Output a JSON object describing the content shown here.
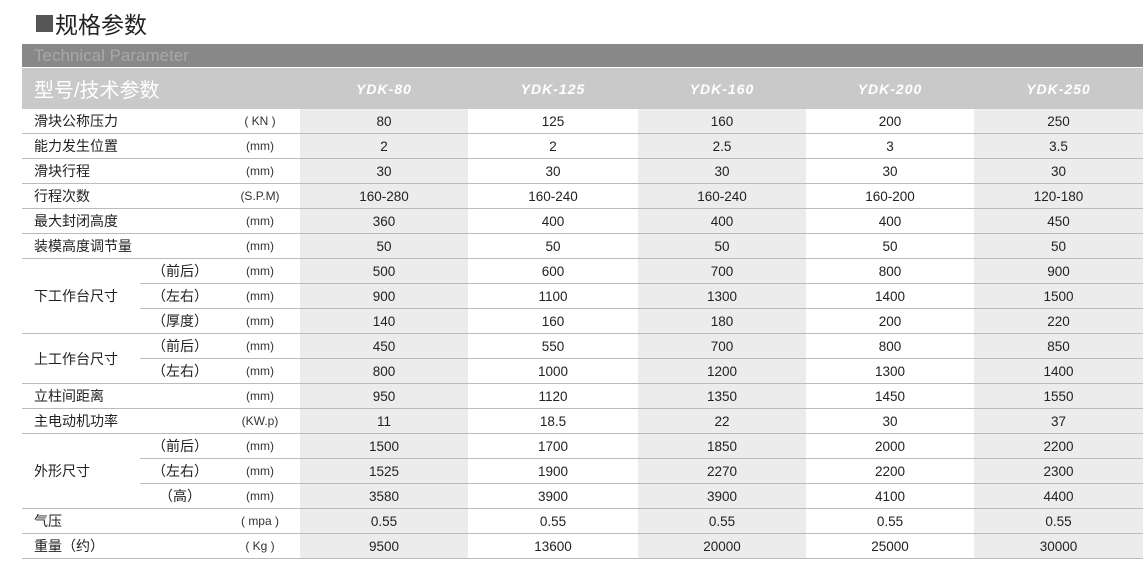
{
  "title": "规格参数",
  "subtitle": "Technical Parameter",
  "header": {
    "label": "型号/技术参数",
    "models": [
      "YDK-80",
      "YDK-125",
      "YDK-160",
      "YDK-200",
      "YDK-250"
    ]
  },
  "rows": [
    {
      "group": "滑块公称压力",
      "sub": "",
      "unit": "( KN )",
      "values": [
        "80",
        "125",
        "160",
        "200",
        "250"
      ]
    },
    {
      "group": "能力发生位置",
      "sub": "",
      "unit": "(mm)",
      "values": [
        "2",
        "2",
        "2.5",
        "3",
        "3.5"
      ]
    },
    {
      "group": "滑块行程",
      "sub": "",
      "unit": "(mm)",
      "values": [
        "30",
        "30",
        "30",
        "30",
        "30"
      ]
    },
    {
      "group": "行程次数",
      "sub": "",
      "unit": "(S.P.M)",
      "values": [
        "160-280",
        "160-240",
        "160-240",
        "160-200",
        "120-180"
      ]
    },
    {
      "group": "最大封闭高度",
      "sub": "",
      "unit": "(mm)",
      "values": [
        "360",
        "400",
        "400",
        "400",
        "450"
      ]
    },
    {
      "group": "装模高度调节量",
      "sub": "",
      "unit": "(mm)",
      "values": [
        "50",
        "50",
        "50",
        "50",
        "50"
      ]
    },
    {
      "group": "下工作台尺寸",
      "span": 3,
      "sub": "（前后）",
      "unit": "(mm)",
      "values": [
        "500",
        "600",
        "700",
        "800",
        "900"
      ]
    },
    {
      "sub": "（左右）",
      "unit": "(mm)",
      "values": [
        "900",
        "1100",
        "1300",
        "1400",
        "1500"
      ]
    },
    {
      "sub": "（厚度）",
      "unit": "(mm)",
      "values": [
        "140",
        "160",
        "180",
        "200",
        "220"
      ]
    },
    {
      "group": "上工作台尺寸",
      "span": 2,
      "sub": "（前后）",
      "unit": "(mm)",
      "values": [
        "450",
        "550",
        "700",
        "800",
        "850"
      ]
    },
    {
      "sub": "（左右）",
      "unit": "(mm)",
      "values": [
        "800",
        "1000",
        "1200",
        "1300",
        "1400"
      ]
    },
    {
      "group": "立柱间距离",
      "sub": "",
      "unit": "(mm)",
      "values": [
        "950",
        "1120",
        "1350",
        "1450",
        "1550"
      ]
    },
    {
      "group": "主电动机功率",
      "sub": "",
      "unit": "(KW.p)",
      "values": [
        "11",
        "18.5",
        "22",
        "30",
        "37"
      ]
    },
    {
      "group": "外形尺寸",
      "span": 3,
      "sub": "（前后）",
      "unit": "(mm)",
      "values": [
        "1500",
        "1700",
        "1850",
        "2000",
        "2200"
      ]
    },
    {
      "sub": "（左右）",
      "unit": "(mm)",
      "values": [
        "1525",
        "1900",
        "2270",
        "2200",
        "2300"
      ]
    },
    {
      "sub": "（高）",
      "unit": "(mm)",
      "values": [
        "3580",
        "3900",
        "3900",
        "4100",
        "4400"
      ]
    },
    {
      "group": "气压",
      "sub": "",
      "unit": "( mpa )",
      "values": [
        "0.55",
        "0.55",
        "0.55",
        "0.55",
        "0.55"
      ]
    },
    {
      "group": "重量（约）",
      "sub": "",
      "unit": "(  Kg  )",
      "values": [
        "9500",
        "13600",
        "20000",
        "25000",
        "30000"
      ]
    }
  ],
  "colors": {
    "title_bar": "#888888",
    "header_row": "#c9c9c9",
    "shaded_column": "#ececec"
  }
}
